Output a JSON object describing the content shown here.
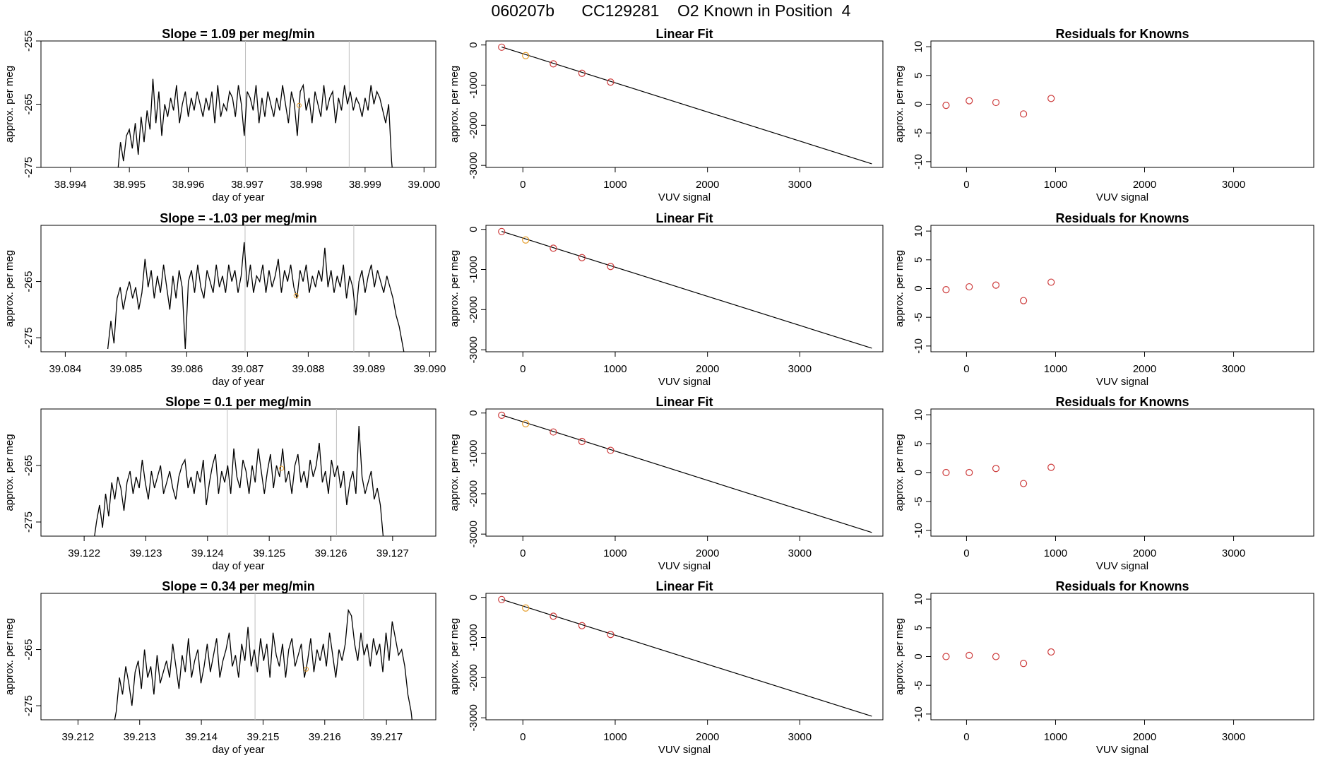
{
  "page_title": "060207b      CC129281    O2 Known in Position  4",
  "colors": {
    "line": "#000000",
    "points": "#cd3b3b",
    "highlight": "#e59e2e",
    "vlines": "#bebebe"
  },
  "chart_data": [
    {
      "type": "line",
      "panel": "slope",
      "row": 1,
      "title": "Slope =  1.09  per meg/min",
      "xlabel": "day of year",
      "ylabel": "approx. per meg",
      "xlim": [
        38.9935,
        39.0002
      ],
      "ylim": [
        -275,
        -255
      ],
      "xticks": [
        "38.994",
        "38.995",
        "38.996",
        "38.997",
        "38.998",
        "38.999",
        "39.000"
      ],
      "yticks": [
        "-255",
        "-265",
        "-275"
      ],
      "data_start": 38.9947,
      "data_end": 38.9995,
      "vlines": [
        38.99697,
        38.99873
      ],
      "marker": {
        "x": 38.99788,
        "y": -265.2
      },
      "trace": [
        -277,
        -279,
        -276,
        -271,
        -274,
        -270,
        -269,
        -272,
        -268,
        -273,
        -267,
        -271,
        -266,
        -269,
        -261,
        -268,
        -263,
        -270,
        -265,
        -267,
        -264,
        -266,
        -262,
        -268,
        -265,
        -263,
        -267,
        -264,
        -266,
        -263,
        -265,
        -267,
        -264,
        -266,
        -263,
        -268,
        -262,
        -267,
        -265,
        -266,
        -263,
        -264,
        -267,
        -262,
        -265,
        -270,
        -263,
        -264,
        -266,
        -262,
        -268,
        -264,
        -267,
        -263,
        -265,
        -267,
        -264,
        -266,
        -262,
        -265,
        -268,
        -263,
        -265,
        -270,
        -263,
        -262,
        -266,
        -264,
        -268,
        -263,
        -265,
        -267,
        -262,
        -266,
        -264,
        -263,
        -268,
        -264,
        -266,
        -262,
        -265,
        -263,
        -266,
        -264,
        -265,
        -267,
        -264,
        -266,
        -262,
        -265,
        -263,
        -264,
        -266,
        -268,
        -265,
        -274,
        -279
      ]
    },
    {
      "type": "line",
      "panel": "fit",
      "row": 1,
      "title": "Linear Fit",
      "xlabel": "VUV signal",
      "ylabel": "approx. per meg",
      "xlim": [
        -400,
        3900
      ],
      "ylim": [
        -3050,
        100
      ],
      "xticks": [
        0,
        1000,
        2000,
        3000
      ],
      "yticks": [
        0,
        -1000,
        -2000,
        -3000
      ],
      "fit_line": {
        "x": [
          -230,
          3780
        ],
        "y": [
          -50,
          -2960
        ]
      },
      "points": [
        {
          "x": -230,
          "y": -55,
          "highlight": false
        },
        {
          "x": 30,
          "y": -265,
          "highlight": true
        },
        {
          "x": 330,
          "y": -470,
          "highlight": false
        },
        {
          "x": 640,
          "y": -705,
          "highlight": false
        },
        {
          "x": 950,
          "y": -925,
          "highlight": false
        }
      ]
    },
    {
      "type": "scatter",
      "panel": "residuals",
      "row": 1,
      "title": "Residuals for Knowns",
      "xlabel": "VUV signal",
      "ylabel": "approx. per meg",
      "xlim": [
        -400,
        3900
      ],
      "ylim": [
        -11,
        11
      ],
      "xticks": [
        0,
        1000,
        2000,
        3000
      ],
      "yticks": [
        10,
        5,
        0,
        -5,
        -10
      ],
      "points": [
        {
          "x": -230,
          "y": -0.2
        },
        {
          "x": 30,
          "y": 0.6
        },
        {
          "x": 330,
          "y": 0.3
        },
        {
          "x": 640,
          "y": -1.7
        },
        {
          "x": 950,
          "y": 1.0
        }
      ]
    },
    {
      "type": "line",
      "panel": "slope",
      "row": 2,
      "title": "Slope =  -1.03  per meg/min",
      "xlabel": "day of year",
      "ylabel": "approx. per meg",
      "xlim": [
        39.0836,
        39.0901
      ],
      "ylim": [
        -277.5,
        -255
      ],
      "xticks": [
        "39.084",
        "39.085",
        "39.086",
        "39.087",
        "39.088",
        "39.089",
        "39.090"
      ],
      "yticks": [
        "-265",
        "-275"
      ],
      "data_start": 39.0847,
      "data_end": 39.0896,
      "vlines": [
        39.08696,
        39.08875
      ],
      "marker": {
        "x": 39.0878,
        "y": -267.5
      },
      "trace": [
        -277,
        -272,
        -276,
        -268,
        -266,
        -270,
        -267,
        -265,
        -268,
        -266,
        -270,
        -267,
        -261,
        -266,
        -263,
        -268,
        -264,
        -267,
        -262,
        -266,
        -270,
        -264,
        -268,
        -263,
        -266,
        -277,
        -265,
        -263,
        -267,
        -262,
        -266,
        -268,
        -263,
        -265,
        -267,
        -262,
        -266,
        -264,
        -267,
        -262,
        -265,
        -263,
        -267,
        -264,
        -258,
        -266,
        -262,
        -267,
        -264,
        -265,
        -262,
        -267,
        -263,
        -266,
        -264,
        -261,
        -267,
        -263,
        -265,
        -262,
        -266,
        -268,
        -263,
        -265,
        -262,
        -267,
        -264,
        -266,
        -263,
        -265,
        -259,
        -266,
        -263,
        -267,
        -264,
        -266,
        -262,
        -268,
        -264,
        -266,
        -271,
        -265,
        -263,
        -267,
        -264,
        -262,
        -266,
        -263,
        -265,
        -267,
        -264,
        -266,
        -268,
        -271,
        -273,
        -276,
        -279
      ]
    },
    {
      "type": "line",
      "panel": "fit",
      "row": 2,
      "title": "Linear Fit",
      "xlabel": "VUV signal",
      "ylabel": "approx. per meg",
      "xlim": [
        -400,
        3900
      ],
      "ylim": [
        -3050,
        100
      ],
      "xticks": [
        0,
        1000,
        2000,
        3000
      ],
      "yticks": [
        0,
        -1000,
        -2000,
        -3000
      ],
      "fit_line": {
        "x": [
          -230,
          3780
        ],
        "y": [
          -50,
          -2960
        ]
      },
      "points": [
        {
          "x": -230,
          "y": -55,
          "highlight": false
        },
        {
          "x": 30,
          "y": -265,
          "highlight": true
        },
        {
          "x": 330,
          "y": -470,
          "highlight": false
        },
        {
          "x": 640,
          "y": -705,
          "highlight": false
        },
        {
          "x": 950,
          "y": -925,
          "highlight": false
        }
      ]
    },
    {
      "type": "scatter",
      "panel": "residuals",
      "row": 2,
      "title": "Residuals for Knowns",
      "xlabel": "VUV signal",
      "ylabel": "approx. per meg",
      "xlim": [
        -400,
        3900
      ],
      "ylim": [
        -11,
        11
      ],
      "xticks": [
        0,
        1000,
        2000,
        3000
      ],
      "yticks": [
        10,
        5,
        0,
        -5,
        -10
      ],
      "points": [
        {
          "x": -230,
          "y": -0.2
        },
        {
          "x": 30,
          "y": 0.3
        },
        {
          "x": 330,
          "y": 0.6
        },
        {
          "x": 640,
          "y": -2.1
        },
        {
          "x": 950,
          "y": 1.1
        }
      ]
    },
    {
      "type": "line",
      "panel": "slope",
      "row": 3,
      "title": "Slope =  0.1  per meg/min",
      "xlabel": "day of year",
      "ylabel": "approx. per meg",
      "xlim": [
        39.1213,
        39.1277
      ],
      "ylim": [
        -277.5,
        -255
      ],
      "xticks": [
        "39.122",
        "39.123",
        "39.124",
        "39.125",
        "39.126",
        "39.127"
      ],
      "yticks": [
        "-265",
        "-275"
      ],
      "data_start": 39.12215,
      "data_end": 39.1269,
      "vlines": [
        39.12432,
        39.12609
      ],
      "marker": {
        "x": 39.1252,
        "y": -265.5
      },
      "trace": [
        -279,
        -275,
        -272,
        -276,
        -270,
        -274,
        -268,
        -271,
        -267,
        -269,
        -273,
        -268,
        -266,
        -270,
        -267,
        -269,
        -264,
        -268,
        -271,
        -266,
        -269,
        -267,
        -265,
        -270,
        -268,
        -266,
        -269,
        -271,
        -267,
        -265,
        -264,
        -269,
        -267,
        -270,
        -266,
        -268,
        -264,
        -272,
        -268,
        -265,
        -263,
        -270,
        -266,
        -268,
        -265,
        -270,
        -262,
        -267,
        -269,
        -264,
        -266,
        -270,
        -265,
        -268,
        -262,
        -266,
        -270,
        -266,
        -263,
        -269,
        -265,
        -267,
        -262,
        -268,
        -266,
        -270,
        -265,
        -263,
        -268,
        -266,
        -269,
        -264,
        -267,
        -265,
        -261,
        -268,
        -266,
        -270,
        -264,
        -267,
        -265,
        -269,
        -266,
        -272,
        -268,
        -266,
        -270,
        -258,
        -267,
        -270,
        -268,
        -266,
        -271,
        -269,
        -272,
        -278,
        -280
      ]
    },
    {
      "type": "line",
      "panel": "fit",
      "row": 3,
      "title": "Linear Fit",
      "xlabel": "VUV signal",
      "ylabel": "approx. per meg",
      "xlim": [
        -400,
        3900
      ],
      "ylim": [
        -3050,
        100
      ],
      "xticks": [
        0,
        1000,
        2000,
        3000
      ],
      "yticks": [
        0,
        -1000,
        -2000,
        -3000
      ],
      "fit_line": {
        "x": [
          -230,
          3780
        ],
        "y": [
          -50,
          -2960
        ]
      },
      "points": [
        {
          "x": -230,
          "y": -55,
          "highlight": false
        },
        {
          "x": 30,
          "y": -265,
          "highlight": true
        },
        {
          "x": 330,
          "y": -470,
          "highlight": false
        },
        {
          "x": 640,
          "y": -705,
          "highlight": false
        },
        {
          "x": 950,
          "y": -925,
          "highlight": false
        }
      ]
    },
    {
      "type": "scatter",
      "panel": "residuals",
      "row": 3,
      "title": "Residuals for Knowns",
      "xlabel": "VUV signal",
      "ylabel": "approx. per meg",
      "xlim": [
        -400,
        3900
      ],
      "ylim": [
        -11,
        11
      ],
      "xticks": [
        0,
        1000,
        2000,
        3000
      ],
      "yticks": [
        10,
        5,
        0,
        -5,
        -10
      ],
      "points": [
        {
          "x": -230,
          "y": 0.0
        },
        {
          "x": 30,
          "y": 0.0
        },
        {
          "x": 330,
          "y": 0.7
        },
        {
          "x": 640,
          "y": -1.9
        },
        {
          "x": 950,
          "y": 0.9
        }
      ]
    },
    {
      "type": "line",
      "panel": "slope",
      "row": 4,
      "title": "Slope =  0.34  per meg/min",
      "xlabel": "day of year",
      "ylabel": "approx. per meg",
      "xlim": [
        39.2114,
        39.2178
      ],
      "ylim": [
        -277.5,
        -255
      ],
      "xticks": [
        "39.212",
        "39.213",
        "39.214",
        "39.215",
        "39.216",
        "39.217"
      ],
      "yticks": [
        "-265",
        "-275"
      ],
      "data_start": 39.21257,
      "data_end": 39.21745,
      "vlines": [
        39.21487,
        39.21663
      ],
      "marker": {
        "x": 39.2157,
        "y": -268.5
      },
      "trace": [
        -279,
        -276,
        -270,
        -273,
        -268,
        -271,
        -275,
        -269,
        -267,
        -272,
        -265,
        -270,
        -268,
        -273,
        -266,
        -271,
        -269,
        -267,
        -270,
        -264,
        -268,
        -272,
        -266,
        -269,
        -263,
        -270,
        -267,
        -265,
        -271,
        -268,
        -264,
        -269,
        -266,
        -263,
        -270,
        -267,
        -265,
        -262,
        -268,
        -266,
        -270,
        -264,
        -267,
        -261,
        -268,
        -265,
        -269,
        -263,
        -267,
        -264,
        -270,
        -262,
        -266,
        -268,
        -264,
        -270,
        -265,
        -263,
        -268,
        -266,
        -264,
        -270,
        -267,
        -263,
        -269,
        -265,
        -267,
        -264,
        -268,
        -262,
        -266,
        -270,
        -265,
        -267,
        -264,
        -258,
        -259,
        -264,
        -267,
        -262,
        -266,
        -264,
        -268,
        -263,
        -266,
        -264,
        -269,
        -262,
        -267,
        -260,
        -263,
        -266,
        -265,
        -268,
        -273,
        -276,
        -281
      ]
    },
    {
      "type": "line",
      "panel": "fit",
      "row": 4,
      "title": "Linear Fit",
      "xlabel": "VUV signal",
      "ylabel": "approx. per meg",
      "xlim": [
        -400,
        3900
      ],
      "ylim": [
        -3050,
        100
      ],
      "xticks": [
        0,
        1000,
        2000,
        3000
      ],
      "yticks": [
        0,
        -1000,
        -2000,
        -3000
      ],
      "fit_line": {
        "x": [
          -230,
          3780
        ],
        "y": [
          -50,
          -2960
        ]
      },
      "points": [
        {
          "x": -230,
          "y": -55,
          "highlight": false
        },
        {
          "x": 30,
          "y": -265,
          "highlight": true
        },
        {
          "x": 330,
          "y": -470,
          "highlight": false
        },
        {
          "x": 640,
          "y": -705,
          "highlight": false
        },
        {
          "x": 950,
          "y": -925,
          "highlight": false
        }
      ]
    },
    {
      "type": "scatter",
      "panel": "residuals",
      "row": 4,
      "title": "Residuals for Knowns",
      "xlabel": "VUV signal",
      "ylabel": "approx. per meg",
      "xlim": [
        -400,
        3900
      ],
      "ylim": [
        -11,
        11
      ],
      "xticks": [
        0,
        1000,
        2000,
        3000
      ],
      "yticks": [
        10,
        5,
        0,
        -5,
        -10
      ],
      "points": [
        {
          "x": -230,
          "y": 0.0
        },
        {
          "x": 30,
          "y": 0.2
        },
        {
          "x": 330,
          "y": 0.0
        },
        {
          "x": 640,
          "y": -1.2
        },
        {
          "x": 950,
          "y": 0.8
        }
      ]
    }
  ]
}
